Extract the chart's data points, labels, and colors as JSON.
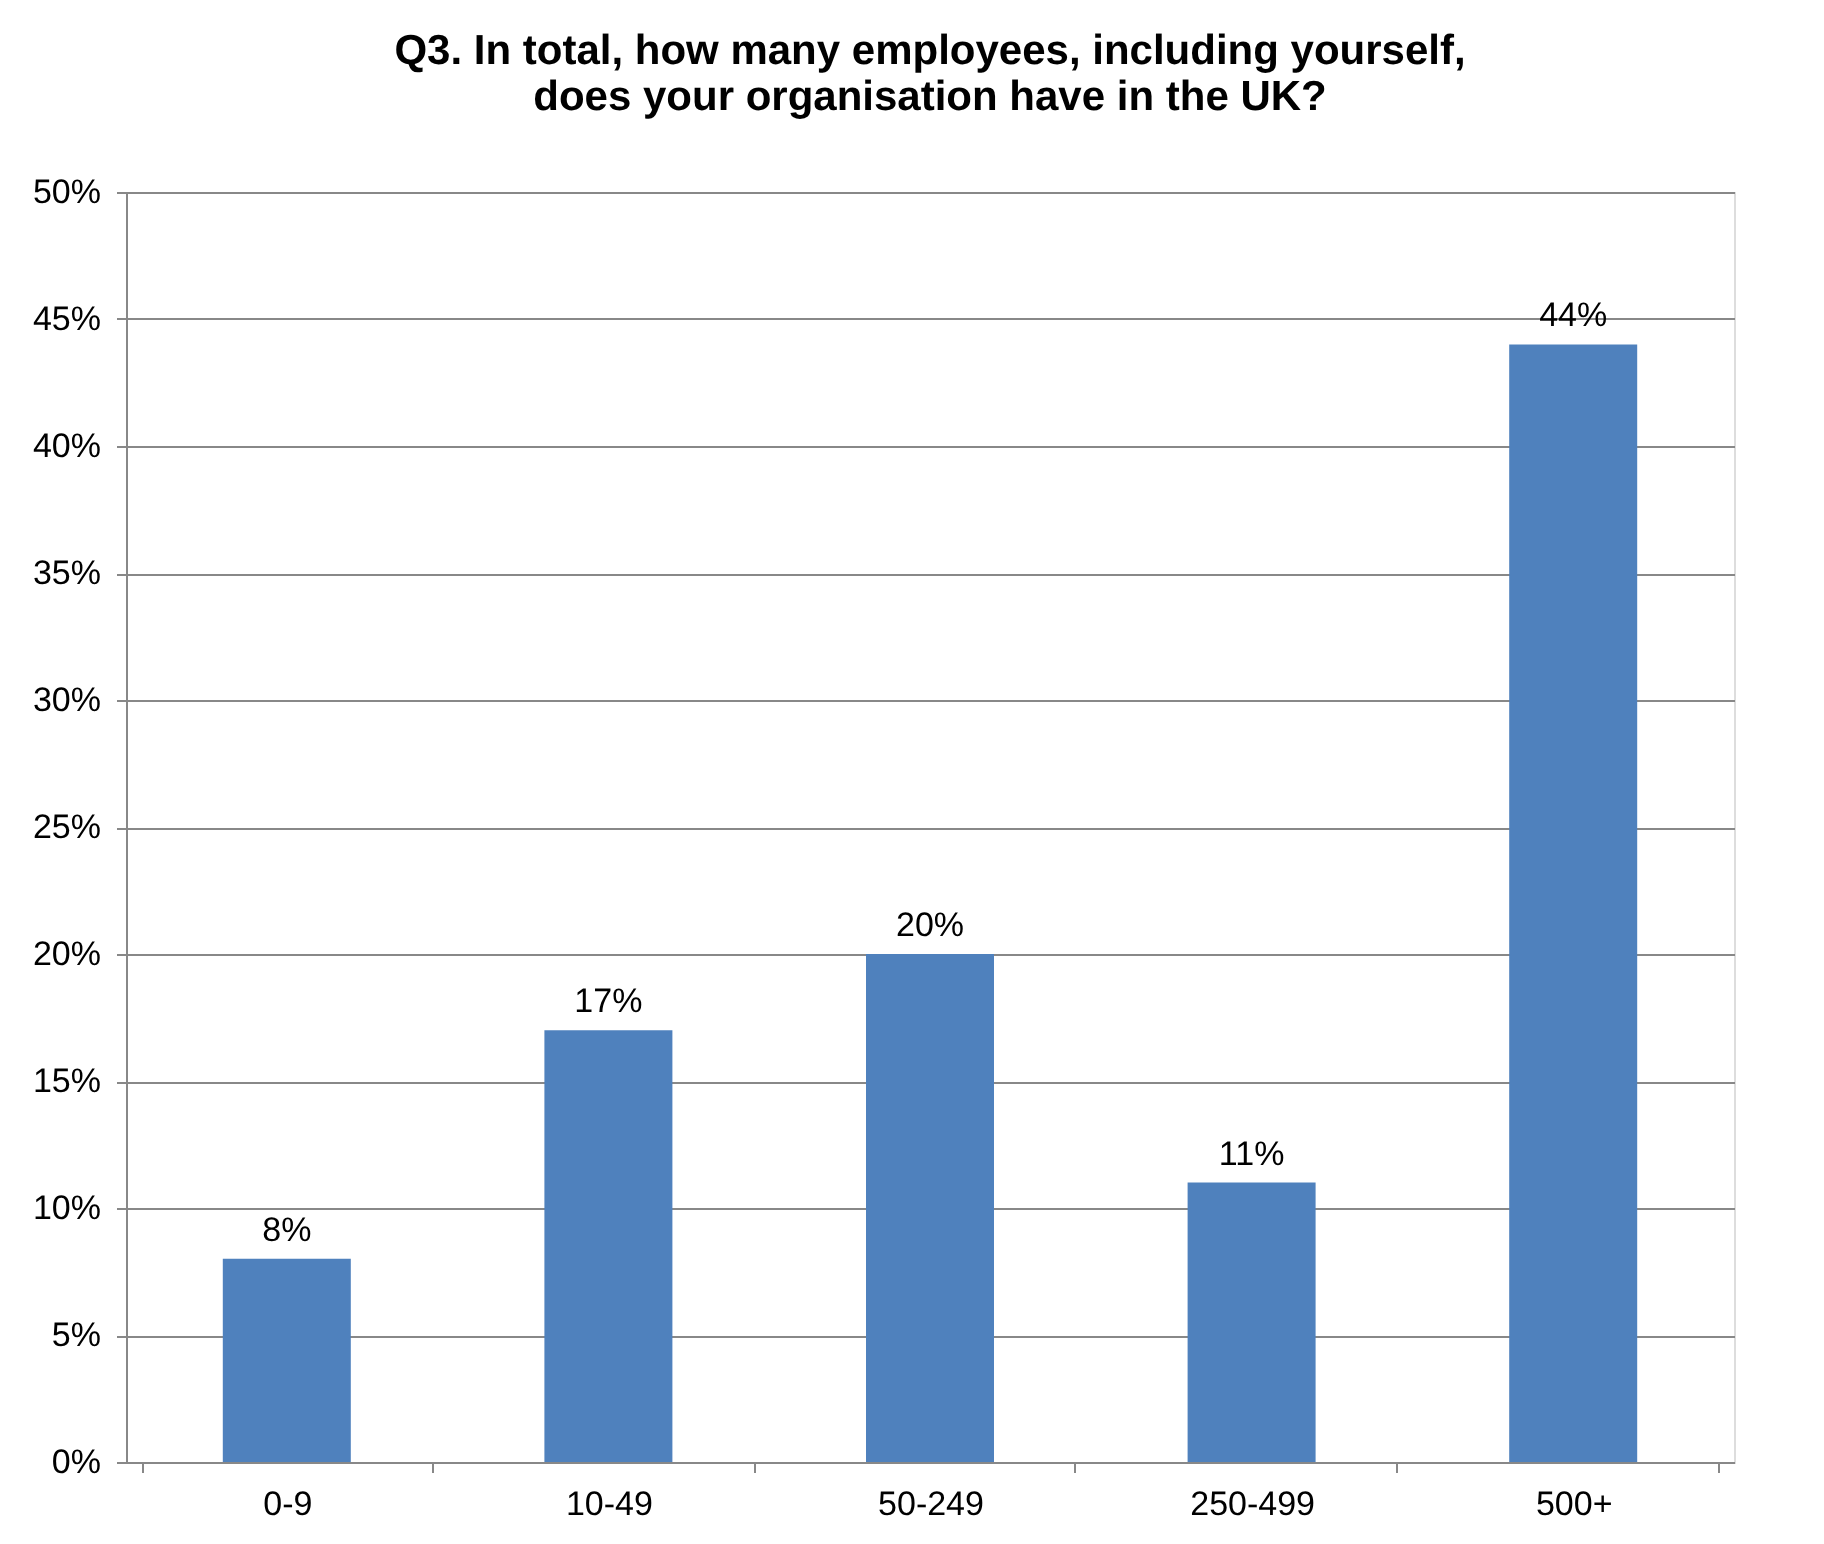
{
  "chart_data": {
    "type": "bar",
    "title": "Q3.  In total, how many employees, including yourself, does your organisation have in the UK?",
    "categories": [
      "0-9",
      "10-49",
      "50-249",
      "250-499",
      "500+"
    ],
    "values": [
      8,
      17,
      20,
      11,
      44
    ],
    "value_labels": [
      "8%",
      "17%",
      "20%",
      "11%",
      "44%"
    ],
    "color": "#4f81bd",
    "ylim": [
      0,
      50
    ],
    "yticks": [
      {
        "value": 0,
        "label": "0%"
      },
      {
        "value": 5,
        "label": "5%"
      },
      {
        "value": 10,
        "label": "10%"
      },
      {
        "value": 15,
        "label": "15%"
      },
      {
        "value": 20,
        "label": "20%"
      },
      {
        "value": 25,
        "label": "25%"
      },
      {
        "value": 30,
        "label": "30%"
      },
      {
        "value": 35,
        "label": "35%"
      },
      {
        "value": 40,
        "label": "40%"
      },
      {
        "value": 45,
        "label": "45%"
      },
      {
        "value": 50,
        "label": "50%"
      }
    ],
    "grid": "y"
  }
}
